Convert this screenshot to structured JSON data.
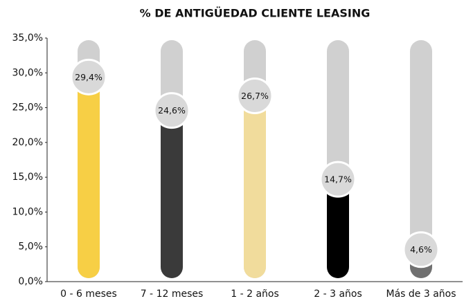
{
  "chart_data": {
    "type": "bar",
    "title": "% DE ANTIGÜEDAD CLIENTE LEASING",
    "categories": [
      "0 - 6 meses",
      "7 - 12 meses",
      "1 - 2 años",
      "2 - 3 años",
      "Más de 3 años"
    ],
    "values": [
      29.4,
      24.6,
      26.7,
      14.7,
      4.6
    ],
    "value_labels": [
      "29,4%",
      "24,6%",
      "26,7%",
      "14,7%",
      "4,6%"
    ],
    "colors": [
      "#f7cf45",
      "#3a3a3a",
      "#f1dc9c",
      "#000000",
      "#707070"
    ],
    "ylim": [
      0,
      35
    ],
    "yticks": [
      {
        "value": 0,
        "label": "0,0%"
      },
      {
        "value": 5,
        "label": "5,0%"
      },
      {
        "value": 10,
        "label": "10,0%"
      },
      {
        "value": 15,
        "label": "15,0%"
      },
      {
        "value": 20,
        "label": "20,0%"
      },
      {
        "value": 25,
        "label": "25,0%"
      },
      {
        "value": 30,
        "label": "30,0%"
      },
      {
        "value": 35,
        "label": "35,0%"
      }
    ]
  }
}
